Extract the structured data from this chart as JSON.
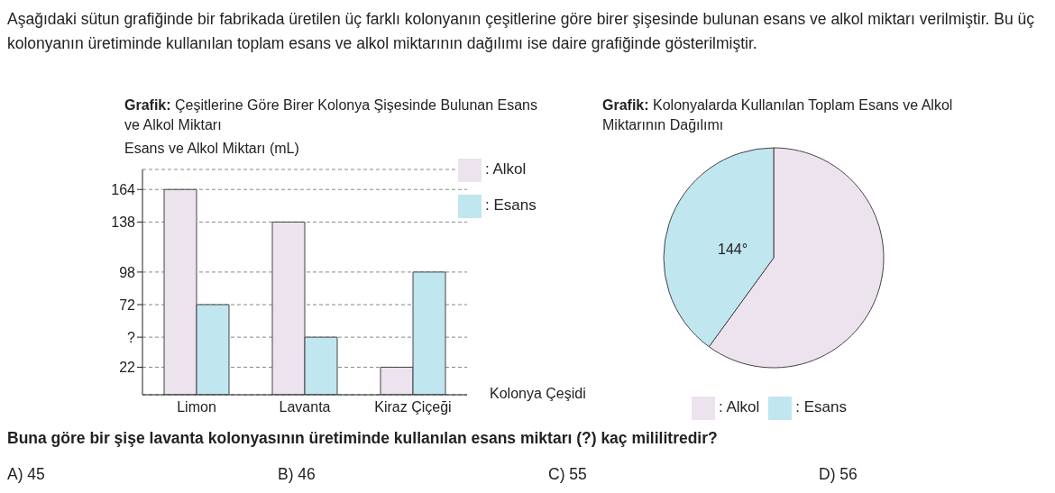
{
  "chart_data": [
    {
      "type": "bar",
      "title": "Grafik: Çeşitlerine Göre Birer Kolonya Şişesinde Bulunan Esans ve Alkol Miktarı",
      "ylabel": "Esans ve Alkol Miktarı (mL)",
      "xlabel": "Kolonya Çeşidi",
      "categories": [
        "Limon",
        "Lavanta",
        "Kiraz Çiçeği"
      ],
      "series": [
        {
          "name": ": Alkol",
          "color": "#ece3ee",
          "values": [
            164,
            138,
            22
          ]
        },
        {
          "name": ": Esans",
          "color": "#c0e6f0",
          "values": [
            72,
            46,
            98
          ]
        }
      ],
      "ylim": [
        0,
        180
      ],
      "yticks": [
        22,
        {
          "value": 46,
          "label": "?"
        },
        72,
        98,
        138,
        164
      ],
      "grid": "y",
      "legend": "top right",
      "annotations": [
        "Aşağıdaki sütun grafiğinde bir fabrikada üretilen üç farklı kolonyanın çeşitlerine göre birer şişesinde bulunan esans ve alkol miktarı verilmiştir. Bu üç kolonyanın üretiminde kullanılan toplam esans ve alkol miktarının dağılımı ise daire grafiğinde gösterilmiştir.",
        "Buna göre bir şişe lavanta kolonyasının üretiminde kullanılan esans miktarı (?) kaç mililitredir?",
        "A) 45",
        "B) 46",
        "C) 55",
        "D) 56"
      ]
    },
    {
      "type": "pie",
      "title": "Grafik: Kolonyalarda Kullanılan Toplam Esans ve Alkol Miktarının Dağılımı",
      "categories": [
        ": Alkol",
        ": Esans"
      ],
      "values": [
        60,
        40
      ],
      "colors": [
        "#ece3ee",
        "#c0e6f0"
      ],
      "legend": "bottom",
      "annotations": [
        "144°"
      ]
    }
  ]
}
